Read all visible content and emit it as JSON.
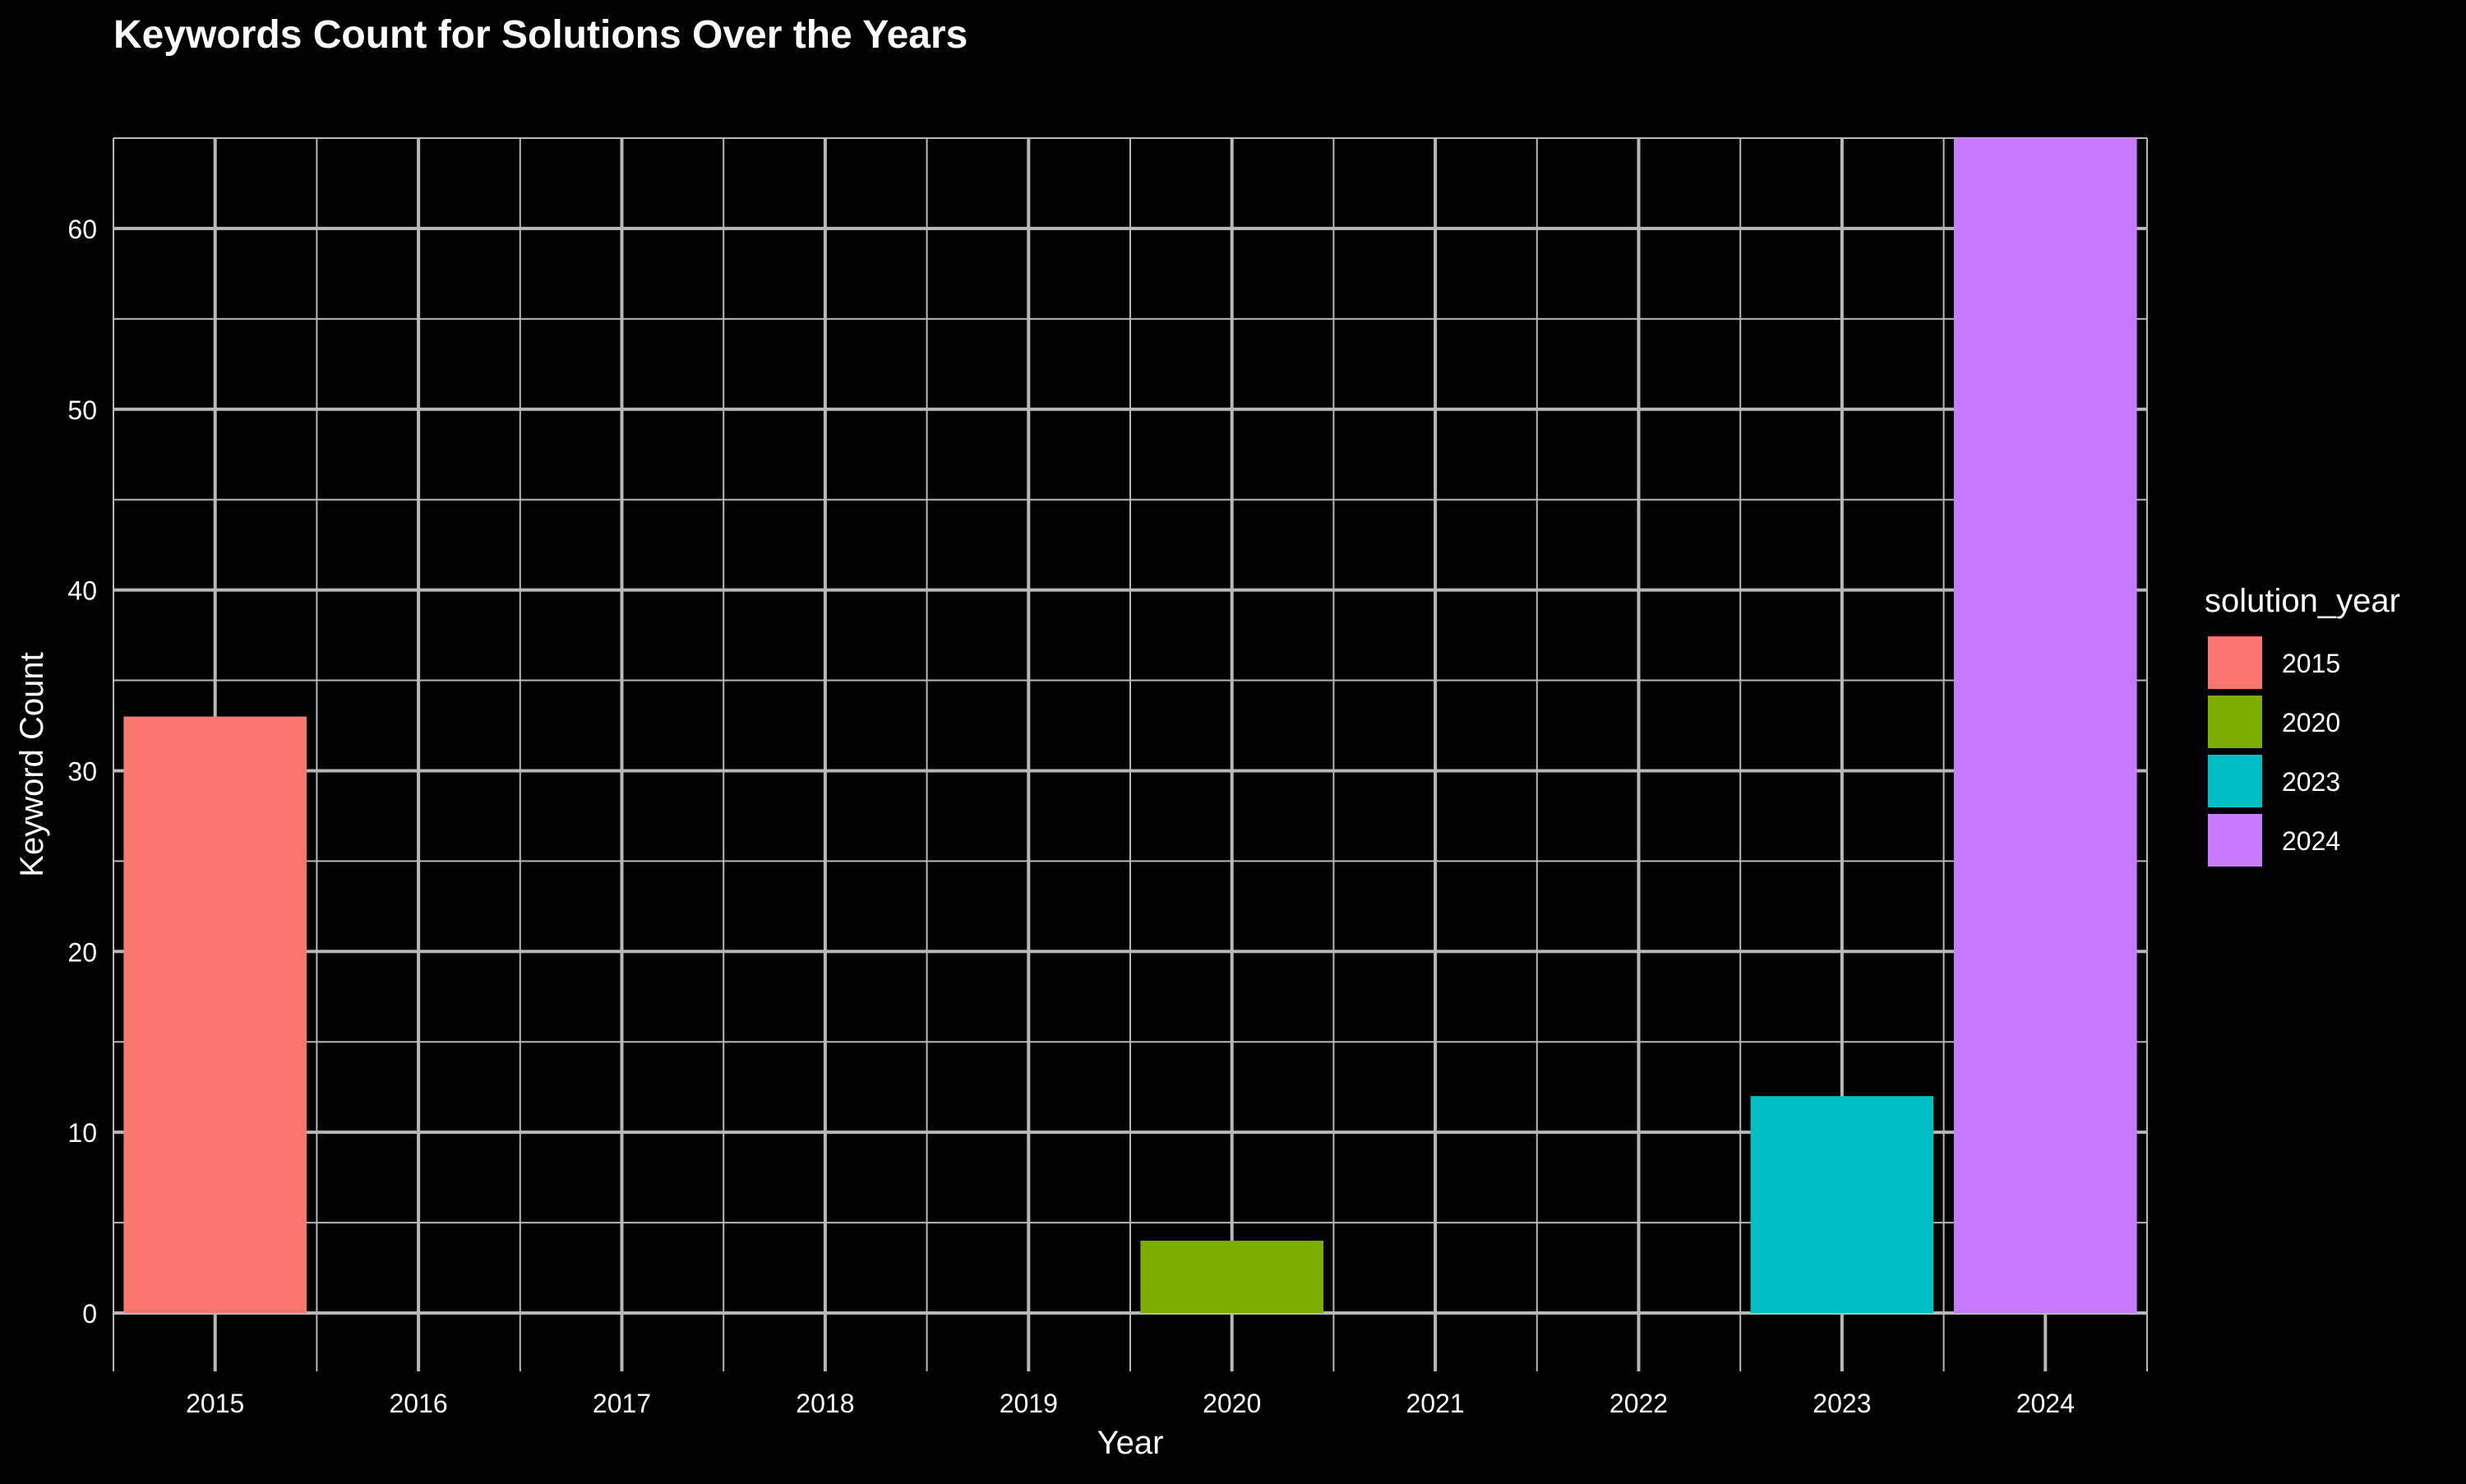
{
  "chart_data": {
    "type": "bar",
    "title": "Keywords Count for Solutions Over the Years",
    "xlabel": "Year",
    "ylabel": "Keyword Count",
    "x_ticks": [
      "2015",
      "2016",
      "2017",
      "2018",
      "2019",
      "2020",
      "2021",
      "2022",
      "2023",
      "2024"
    ],
    "xlim": [
      2014.5,
      2024.5
    ],
    "ylim": [
      0,
      65
    ],
    "y_ticks": [
      0,
      10,
      20,
      30,
      40,
      50,
      60
    ],
    "y_minor_ticks": [
      5,
      15,
      25,
      35,
      45,
      55,
      65
    ],
    "grid": true,
    "legend": {
      "title": "solution_year",
      "placement": "right",
      "entries": [
        "2015",
        "2020",
        "2023",
        "2024"
      ]
    },
    "bars": [
      {
        "x": 2015,
        "value": 33,
        "fill_key": "2015"
      },
      {
        "x": 2020,
        "value": 4,
        "fill_key": "2020"
      },
      {
        "x": 2023,
        "value": 12,
        "fill_key": "2023"
      },
      {
        "x": 2024,
        "value": 65,
        "fill_key": "2024"
      }
    ],
    "colors": {
      "background": "#000000",
      "grid": "#b8b8b8",
      "text": "#ffffff",
      "2015": "#F8766D",
      "2020": "#7CAE00",
      "2023": "#00BFC4",
      "2024": "#C77CFF"
    }
  }
}
